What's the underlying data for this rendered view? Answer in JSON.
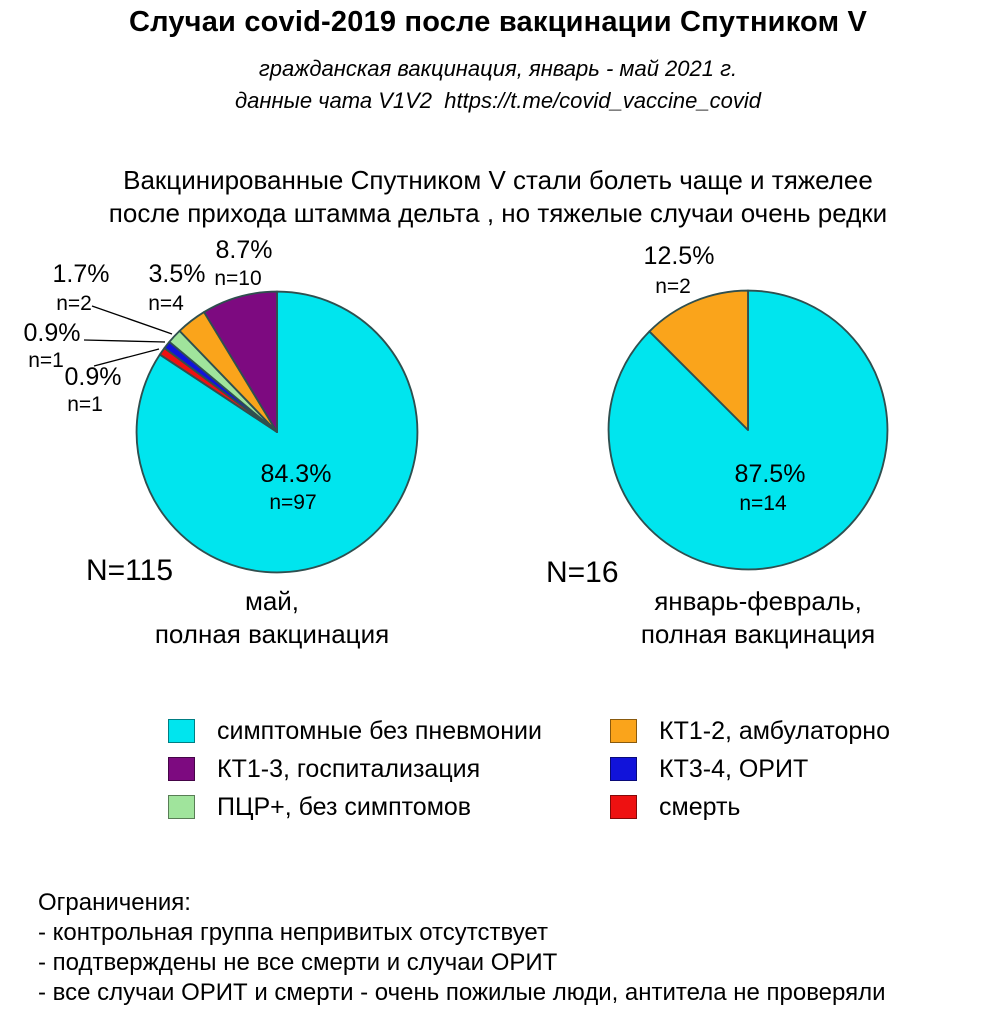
{
  "title": "Случаи covid-2019 после вакцинации Спутником V",
  "subtitle_line1": "гражданская вакцинация, январь - май 2021 г.",
  "subtitle_line2": "данные чата V1V2  https://t.me/covid_vaccine_covid",
  "statement_line1": "Вакцинированные Спутником V стали болеть чаще и тяжелее",
  "statement_line2": "после прихода штамма дельта , но тяжелые случаи очень редки",
  "background_color": "#FFFFFF",
  "pie_edge_color": "#2F4F4F",
  "colors": {
    "cyan": "#00E5EE",
    "purple": "#7D0A80",
    "green": "#A0E49C",
    "orange": "#FAA41B",
    "blue": "#1113DA",
    "red": "#EE1111"
  },
  "chart_data": [
    {
      "type": "pie",
      "name": "may-full-vaccination",
      "direction": "clockwise-from-top",
      "total_label": "N=115",
      "caption": [
        "май,",
        "полная вакцинация"
      ],
      "slices": [
        {
          "label": "симптомные без пневмонии",
          "pct": 84.3,
          "n": 97,
          "pct_label": "84.3%",
          "n_label": "n=97",
          "color": "#00E5EE"
        },
        {
          "label": "смерть",
          "pct": 0.9,
          "n": 1,
          "pct_label": "0.9%",
          "n_label": "n=1",
          "color": "#EE1111"
        },
        {
          "label": "КТ3-4, ОРИТ",
          "pct": 0.9,
          "n": 1,
          "pct_label": "0.9%",
          "n_label": "n=1",
          "color": "#1113DA"
        },
        {
          "label": "ПЦР+, без симптомов",
          "pct": 1.7,
          "n": 2,
          "pct_label": "1.7%",
          "n_label": "n=2",
          "color": "#A0E49C"
        },
        {
          "label": "КТ1-2, амбулаторно",
          "pct": 3.5,
          "n": 4,
          "pct_label": "3.5%",
          "n_label": "n=4",
          "color": "#FAA41B"
        },
        {
          "label": "КТ1-3, госпитализация",
          "pct": 8.7,
          "n": 10,
          "pct_label": "8.7%",
          "n_label": "n=10",
          "color": "#7D0A80"
        }
      ]
    },
    {
      "type": "pie",
      "name": "jan-feb-full-vaccination",
      "direction": "clockwise-from-top",
      "total_label": "N=16",
      "caption": [
        "январь-февраль,",
        "полная вакцинация"
      ],
      "slices": [
        {
          "label": "симптомные без пневмонии",
          "pct": 87.5,
          "n": 14,
          "pct_label": "87.5%",
          "n_label": "n=14",
          "color": "#00E5EE"
        },
        {
          "label": "КТ1-2, амбулаторно",
          "pct": 12.5,
          "n": 2,
          "pct_label": "12.5%",
          "n_label": "n=2",
          "color": "#FAA41B"
        }
      ]
    }
  ],
  "legend": {
    "columns": [
      {
        "items": [
          {
            "label": "симптомные без пневмонии",
            "color": "#00E5EE"
          },
          {
            "label": "КТ1-3, госпитализация",
            "color": "#7D0A80"
          },
          {
            "label": "ПЦР+, без симптомов",
            "color": "#A0E49C"
          }
        ]
      },
      {
        "items": [
          {
            "label": "КТ1-2, амбулаторно",
            "color": "#FAA41B"
          },
          {
            "label": "КТ3-4, ОРИТ",
            "color": "#1113DA"
          },
          {
            "label": "смерть",
            "color": "#EE1111"
          }
        ]
      }
    ]
  },
  "limitations": {
    "heading": "Ограничения:",
    "items": [
      "- контрольная группа непривитых отсутствует",
      "- подтверждены не все смерти и случаи ОРИТ",
      "- все случаи ОРИТ и смерти - очень пожилые люди, антитела не проверяли"
    ]
  }
}
